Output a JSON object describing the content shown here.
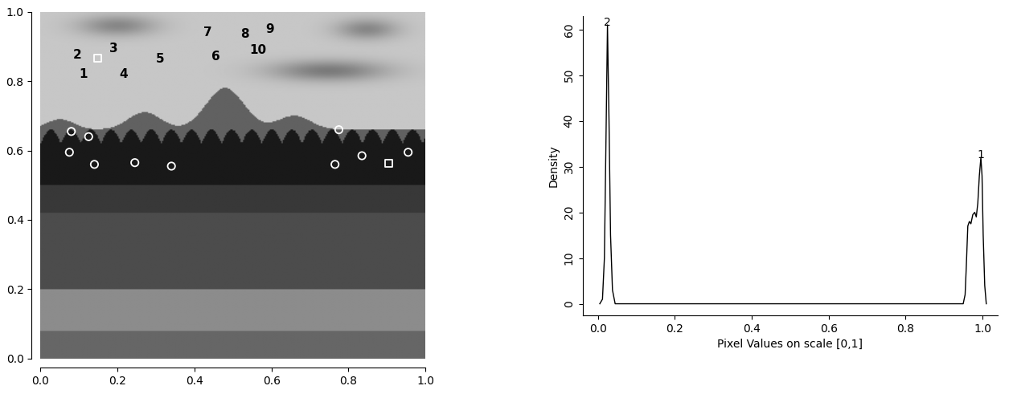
{
  "chart_data": [
    {
      "type": "image",
      "xlim": [
        0,
        1
      ],
      "ylim": [
        0,
        1
      ],
      "xticks": [
        {
          "value": 0,
          "label": "0.0"
        },
        {
          "value": 0.2,
          "label": "0.2"
        },
        {
          "value": 0.4,
          "label": "0.4"
        },
        {
          "value": 0.6,
          "label": "0.6"
        },
        {
          "value": 0.8,
          "label": "0.8"
        },
        {
          "value": 1,
          "label": "1.0"
        }
      ],
      "yticks": [
        {
          "value": 0,
          "label": "0.0"
        },
        {
          "value": 0.2,
          "label": "0.2"
        },
        {
          "value": 0.4,
          "label": "0.4"
        },
        {
          "value": 0.6,
          "label": "0.6"
        },
        {
          "value": 0.8,
          "label": "0.8"
        },
        {
          "value": 1,
          "label": "1.0"
        }
      ],
      "series": [
        {
          "type": "scatter",
          "marker": "circle",
          "color": "#ffffff",
          "x": [
            0.08,
            0.125,
            0.075,
            0.14,
            0.245,
            0.34,
            0.765,
            0.775,
            0.835,
            0.955
          ],
          "y": [
            0.655,
            0.64,
            0.595,
            0.56,
            0.565,
            0.555,
            0.56,
            0.66,
            0.585,
            0.595
          ]
        },
        {
          "type": "scatter",
          "marker": "square",
          "color": "#ffffff",
          "x": [
            0.148,
            0.905
          ],
          "y": [
            0.867,
            0.563
          ]
        }
      ],
      "annotations": [
        {
          "text": "1",
          "x": 0.11,
          "y": 0.82
        },
        {
          "text": "2",
          "x": 0.095,
          "y": 0.875
        },
        {
          "text": "3",
          "x": 0.19,
          "y": 0.895
        },
        {
          "text": "4",
          "x": 0.215,
          "y": 0.82
        },
        {
          "text": "5",
          "x": 0.31,
          "y": 0.865
        },
        {
          "text": "6",
          "x": 0.455,
          "y": 0.87
        },
        {
          "text": "7",
          "x": 0.435,
          "y": 0.94
        },
        {
          "text": "8",
          "x": 0.53,
          "y": 0.935
        },
        {
          "text": "9",
          "x": 0.595,
          "y": 0.95
        },
        {
          "text": "10",
          "x": 0.565,
          "y": 0.89
        }
      ]
    },
    {
      "type": "line",
      "x_label": "Pixel Values on scale [0,1]",
      "y_label": "Density",
      "color": "#000000",
      "x": [
        0.005,
        0.012,
        0.017,
        0.021,
        0.025,
        0.029,
        0.033,
        0.038,
        0.045,
        0.1,
        0.9,
        0.95,
        0.955,
        0.958,
        0.962,
        0.966,
        0.97,
        0.975,
        0.98,
        0.984,
        0.988,
        0.992,
        0.996,
        0.999,
        1.002,
        1.006,
        1.01
      ],
      "values": [
        0,
        1,
        10,
        35,
        61,
        40,
        15,
        3,
        0,
        0,
        0,
        0,
        2,
        8,
        17,
        18,
        17.5,
        19.5,
        20,
        19,
        22,
        28,
        32,
        28,
        15,
        4,
        0
      ],
      "xlim": [
        -0.04,
        1.04
      ],
      "ylim": [
        -2.5,
        63
      ],
      "xticks": [
        {
          "value": 0,
          "label": "0.0"
        },
        {
          "value": 0.2,
          "label": "0.2"
        },
        {
          "value": 0.4,
          "label": "0.4"
        },
        {
          "value": 0.6,
          "label": "0.6"
        },
        {
          "value": 0.8,
          "label": "0.8"
        },
        {
          "value": 1,
          "label": "1.0"
        }
      ],
      "yticks": [
        0,
        10,
        20,
        30,
        40,
        50,
        60
      ],
      "annotations": [
        {
          "text": "2",
          "x": 0.025,
          "y": 61.5
        },
        {
          "text": "1",
          "x": 0.996,
          "y": 32.5
        }
      ]
    }
  ]
}
